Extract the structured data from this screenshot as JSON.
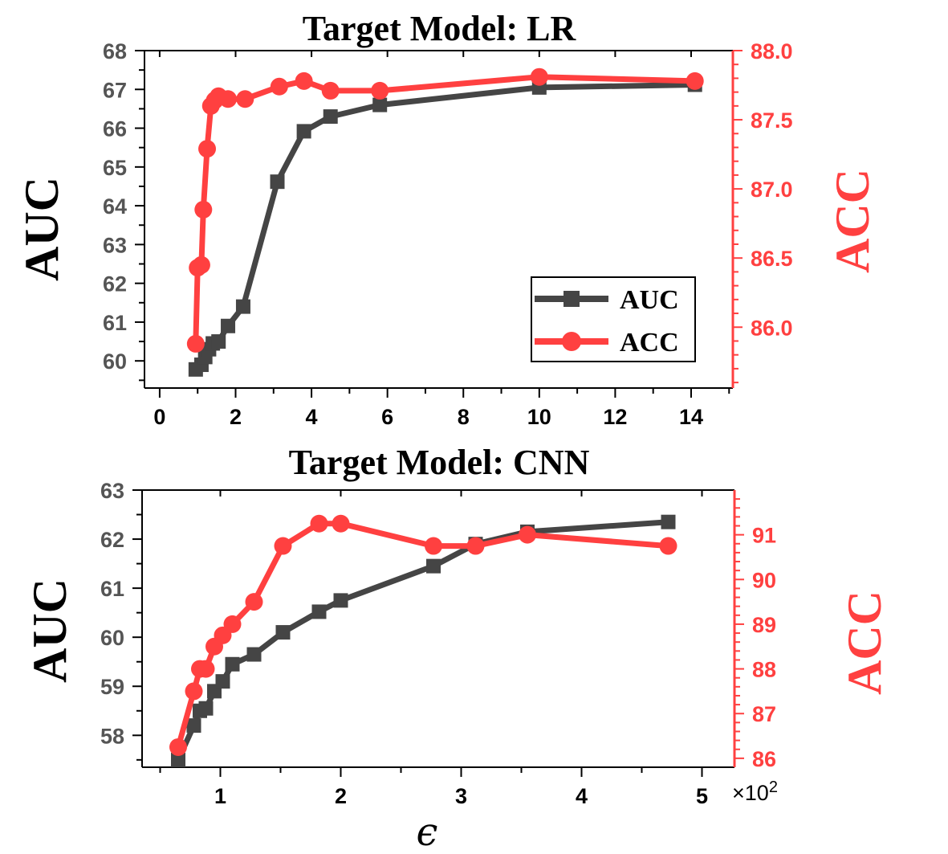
{
  "chart_data": [
    {
      "type": "line",
      "title": "Target Model: LR",
      "ylabel_left": "AUC",
      "ylabel_right": "ACC",
      "xlabel": "",
      "xlim": [
        -0.4,
        15.1
      ],
      "ylim_left": [
        59.3,
        68
      ],
      "ylim_right": [
        85.56,
        88.0
      ],
      "xticks": [
        0,
        2,
        4,
        6,
        8,
        10,
        12,
        14
      ],
      "yticks_left": [
        60,
        61,
        62,
        63,
        64,
        65,
        66,
        67,
        68
      ],
      "yticks_right": [
        86.0,
        86.5,
        87.0,
        87.5,
        88.0
      ],
      "legend": {
        "position": "lower-right",
        "entries": [
          "AUC",
          "ACC"
        ]
      },
      "series": [
        {
          "name": "AUC",
          "axis": "left",
          "color": "#454545",
          "marker": "square",
          "points": [
            [
              0.95,
              59.78
            ],
            [
              1.1,
              59.9
            ],
            [
              1.2,
              60.1
            ],
            [
              1.3,
              60.3
            ],
            [
              1.4,
              60.45
            ],
            [
              1.55,
              60.5
            ],
            [
              1.8,
              60.9
            ],
            [
              2.2,
              61.4
            ],
            [
              3.1,
              64.62
            ],
            [
              3.8,
              65.92
            ],
            [
              4.5,
              66.3
            ],
            [
              5.8,
              66.6
            ],
            [
              10.0,
              67.05
            ],
            [
              14.1,
              67.12
            ]
          ]
        },
        {
          "name": "ACC",
          "axis": "right",
          "color": "#ff4040",
          "marker": "circle",
          "points": [
            [
              0.95,
              85.88
            ],
            [
              1.0,
              86.43
            ],
            [
              1.1,
              86.45
            ],
            [
              1.15,
              86.85
            ],
            [
              1.25,
              87.29
            ],
            [
              1.35,
              87.6
            ],
            [
              1.45,
              87.64
            ],
            [
              1.55,
              87.67
            ],
            [
              1.8,
              87.65
            ],
            [
              2.25,
              87.65
            ],
            [
              3.15,
              87.74
            ],
            [
              3.8,
              87.78
            ],
            [
              4.5,
              87.71
            ],
            [
              5.8,
              87.71
            ],
            [
              10.0,
              87.81
            ],
            [
              14.1,
              87.78
            ]
          ]
        }
      ]
    },
    {
      "type": "line",
      "title": "Target Model: CNN",
      "ylabel_left": "AUC",
      "ylabel_right": "ACC",
      "xlabel": "ϵ",
      "x_multiplier": "×10",
      "x_multiplier_exp": "2",
      "xlim": [
        0.35,
        5.27
      ],
      "ylim_left": [
        57.35,
        63
      ],
      "ylim_right": [
        85.8,
        92.0
      ],
      "xticks": [
        1,
        2,
        3,
        4,
        5
      ],
      "yticks_left": [
        58,
        59,
        60,
        61,
        62,
        63
      ],
      "yticks_right": [
        86,
        87,
        88,
        89,
        90,
        91
      ],
      "series": [
        {
          "name": "AUC",
          "axis": "left",
          "color": "#454545",
          "marker": "square",
          "points": [
            [
              0.65,
              57.5
            ],
            [
              0.78,
              58.2
            ],
            [
              0.83,
              58.5
            ],
            [
              0.88,
              58.55
            ],
            [
              0.95,
              58.9
            ],
            [
              1.02,
              59.1
            ],
            [
              1.1,
              59.45
            ],
            [
              1.28,
              59.65
            ],
            [
              1.52,
              60.1
            ],
            [
              1.82,
              60.52
            ],
            [
              2.0,
              60.75
            ],
            [
              2.77,
              61.45
            ],
            [
              3.12,
              61.9
            ],
            [
              3.55,
              62.15
            ],
            [
              4.72,
              62.35
            ]
          ]
        },
        {
          "name": "ACC",
          "axis": "right",
          "color": "#ff4040",
          "marker": "circle",
          "points": [
            [
              0.65,
              86.25
            ],
            [
              0.78,
              87.5
            ],
            [
              0.83,
              88.0
            ],
            [
              0.88,
              88.0
            ],
            [
              0.95,
              88.5
            ],
            [
              1.02,
              88.75
            ],
            [
              1.1,
              89.0
            ],
            [
              1.28,
              89.5
            ],
            [
              1.52,
              90.75
            ],
            [
              1.82,
              91.25
            ],
            [
              2.0,
              91.25
            ],
            [
              2.77,
              90.75
            ],
            [
              3.12,
              90.75
            ],
            [
              3.55,
              91.0
            ],
            [
              4.72,
              90.75
            ]
          ]
        }
      ]
    }
  ]
}
